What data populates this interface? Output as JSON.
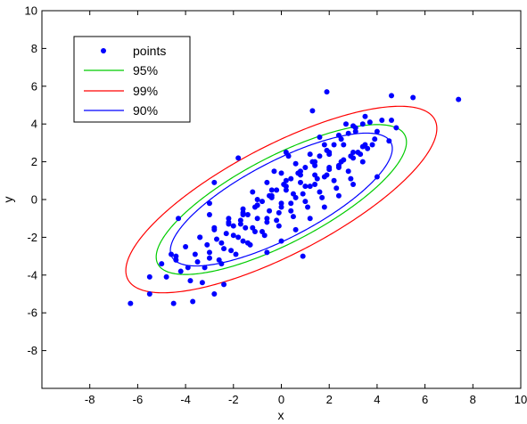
{
  "chart_data": {
    "type": "scatter",
    "xlabel": "x",
    "ylabel": "y",
    "xlim": [
      -10,
      10
    ],
    "ylim": [
      -10,
      10
    ],
    "xticks": [
      -8,
      -6,
      -4,
      -2,
      0,
      2,
      4,
      6,
      8,
      10
    ],
    "yticks": [
      -8,
      -6,
      -4,
      -2,
      0,
      2,
      4,
      6,
      8,
      10
    ],
    "grid": false,
    "legend_position": "top-left",
    "legend": [
      "points",
      "95%",
      "99%",
      "90%"
    ],
    "colors": {
      "points": "#0000ff",
      "c95": "#00cc00",
      "c99": "#ff0000",
      "c90": "#0000ff"
    },
    "ellipse_axes": {
      "center": [
        0,
        0
      ],
      "angle_deg": 35,
      "c90": [
        5.5,
        1.9
      ],
      "c95": [
        6.2,
        2.15
      ],
      "c99": [
        7.7,
        2.7
      ]
    },
    "series": [
      {
        "name": "points",
        "x": [
          7.4,
          5.5,
          4.6,
          1.9,
          1.3,
          -1.8,
          -6.3,
          -5.5,
          -4.5,
          -3.7,
          -4.3,
          -3.0,
          -2.8,
          -4.4,
          -2.4,
          -3.3,
          4.0,
          3.3,
          3.1,
          4.8,
          4.6,
          4.5,
          0.9,
          -2.8,
          -5.5,
          -4.4,
          -3.9,
          -3.6,
          -3.1,
          -2.7,
          -2.3,
          -2.0,
          -1.7,
          -1.4,
          -1.1,
          -0.8,
          -0.5,
          -0.2,
          0.1,
          0.4,
          0.7,
          1.0,
          1.3,
          1.6,
          1.9,
          2.2,
          2.5,
          2.8,
          3.1,
          3.4,
          3.7,
          4.0,
          -4.8,
          -4.2,
          -3.5,
          -3.0,
          -2.5,
          -2.0,
          -1.5,
          -1.0,
          -0.5,
          0.0,
          0.5,
          1.0,
          1.5,
          2.0,
          2.5,
          3.0,
          3.5,
          -3.8,
          -3.2,
          -2.6,
          -2.1,
          -1.6,
          -1.1,
          -0.6,
          -0.1,
          0.4,
          0.9,
          1.4,
          1.9,
          2.4,
          2.9,
          3.4,
          3.9,
          -3.0,
          -2.4,
          -1.8,
          -1.2,
          -0.6,
          0.0,
          0.6,
          1.2,
          1.8,
          2.4,
          3.0,
          3.6,
          -2.2,
          -1.6,
          -1.0,
          -0.4,
          0.2,
          0.8,
          1.4,
          2.0,
          2.6,
          -1.4,
          -0.8,
          -0.2,
          0.4,
          1.0,
          1.6,
          2.2,
          2.8,
          3.4,
          -0.6,
          0.0,
          0.6,
          1.2,
          1.8,
          2.4,
          3.0,
          -3.4,
          -2.8,
          -2.2,
          -1.6,
          -1.0,
          -0.4,
          0.2,
          0.8,
          1.4,
          2.0,
          -4.0,
          -3.4,
          -2.8,
          -2.2,
          -1.6,
          -1.0,
          -0.4,
          0.2,
          0.8,
          1.4,
          2.0,
          2.6,
          3.2,
          3.8,
          -2.5,
          -1.9,
          -1.3,
          -0.7,
          -0.1,
          0.5,
          1.1,
          1.7,
          2.3,
          2.9,
          -1.2,
          -0.6,
          0.0,
          0.6,
          1.2,
          1.8,
          2.4,
          3.0,
          -5.0,
          -4.6,
          -3.0,
          -1.7,
          0.2,
          1.6,
          2.7,
          3.5,
          4.2,
          -0.3,
          0.3
        ],
        "y": [
          5.3,
          5.4,
          5.5,
          5.7,
          4.7,
          2.2,
          -5.5,
          -5.0,
          -5.5,
          -5.4,
          -1.0,
          -0.2,
          0.9,
          -3.0,
          -4.5,
          -4.4,
          1.2,
          2.4,
          3.6,
          3.8,
          4.2,
          3.1,
          -3.0,
          -5.0,
          -4.1,
          -3.2,
          -3.6,
          -2.9,
          -2.4,
          -2.1,
          -1.8,
          -1.4,
          -1.1,
          -0.8,
          -0.4,
          -0.1,
          0.2,
          0.5,
          0.8,
          1.1,
          1.4,
          1.7,
          2.0,
          2.3,
          2.6,
          2.9,
          3.2,
          3.5,
          3.8,
          4.0,
          4.1,
          3.6,
          -4.1,
          -3.8,
          -3.3,
          -2.8,
          -2.3,
          -1.9,
          -1.5,
          -1.0,
          -0.6,
          -0.2,
          0.3,
          0.7,
          1.1,
          1.6,
          2.0,
          2.5,
          2.9,
          -4.3,
          -3.6,
          -3.2,
          -2.7,
          -2.2,
          -1.7,
          -1.2,
          -0.7,
          -0.2,
          0.3,
          0.8,
          1.3,
          1.8,
          2.3,
          2.8,
          3.2,
          -3.1,
          -2.6,
          -2.0,
          -1.5,
          -1.0,
          -0.4,
          0.1,
          0.7,
          1.2,
          1.7,
          2.2,
          2.7,
          -1.3,
          -0.8,
          -0.3,
          0.2,
          0.7,
          1.3,
          1.8,
          2.4,
          2.9,
          -2.3,
          -1.7,
          -1.1,
          -0.6,
          -0.1,
          0.4,
          1.0,
          1.5,
          2.0,
          -2.8,
          -2.2,
          -1.6,
          -1.0,
          -0.4,
          0.2,
          0.8,
          -2.0,
          -1.5,
          -1.0,
          -0.5,
          0.0,
          0.5,
          1.0,
          1.5,
          2.0,
          2.5,
          -2.5,
          -2.0,
          -1.6,
          -1.2,
          -0.7,
          -0.3,
          0.1,
          0.5,
          0.9,
          1.3,
          1.7,
          2.1,
          2.5,
          2.9,
          -3.4,
          -2.9,
          -2.4,
          -1.9,
          -1.4,
          -0.9,
          -0.4,
          0.1,
          0.6,
          1.1,
          0.4,
          0.9,
          1.4,
          1.9,
          2.4,
          2.9,
          3.4,
          3.9,
          -3.4,
          -2.9,
          -0.8,
          -1.3,
          2.5,
          3.3,
          4.0,
          4.4,
          4.2,
          1.5,
          2.3
        ]
      }
    ]
  }
}
